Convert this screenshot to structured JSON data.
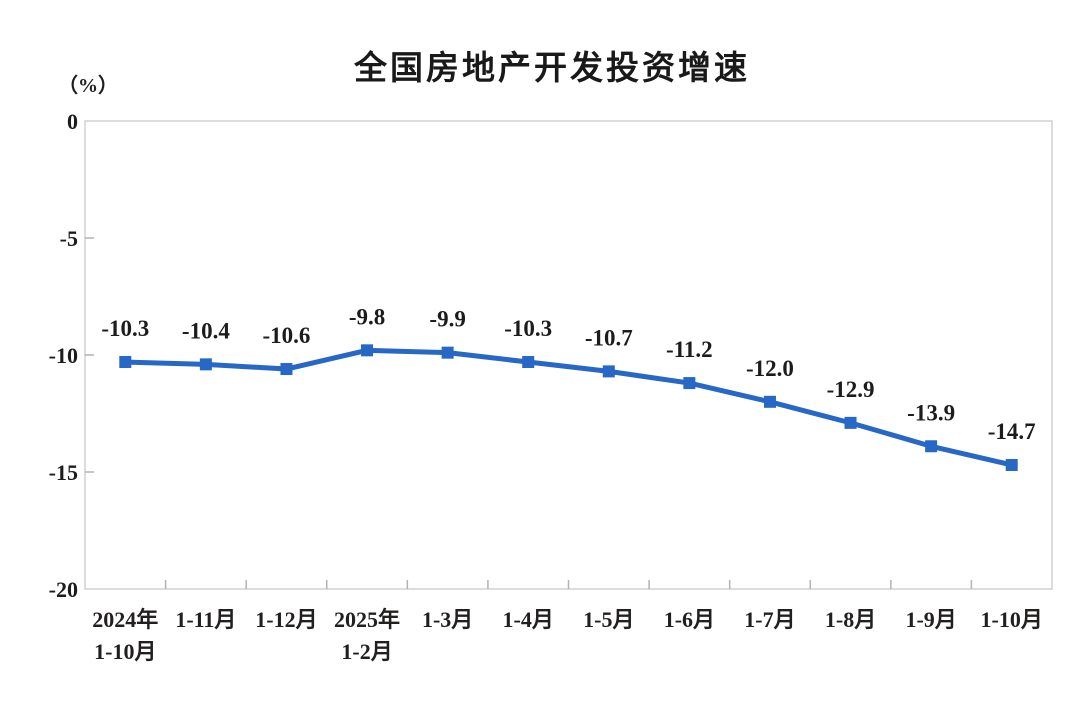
{
  "chart_data": {
    "type": "line",
    "title": "全国房地产开发投资增速",
    "ylabel": "（%）",
    "xlabel": "",
    "categories": [
      [
        "2024年",
        "1-10月"
      ],
      [
        "1-11月"
      ],
      [
        "1-12月"
      ],
      [
        "2025年",
        "1-2月"
      ],
      [
        "1-3月"
      ],
      [
        "1-4月"
      ],
      [
        "1-5月"
      ],
      [
        "1-6月"
      ],
      [
        "1-7月"
      ],
      [
        "1-8月"
      ],
      [
        "1-9月"
      ],
      [
        "1-10月"
      ]
    ],
    "series": [
      {
        "name": "全国房地产开发投资增速",
        "values": [
          -10.3,
          -10.4,
          -10.6,
          -9.8,
          -9.9,
          -10.3,
          -10.7,
          -11.2,
          -12.0,
          -12.9,
          -13.9,
          -14.7
        ]
      }
    ],
    "data_labels": [
      "-10.3",
      "-10.4",
      "-10.6",
      "-9.8",
      "-9.9",
      "-10.3",
      "-10.7",
      "-11.2",
      "-12.0",
      "-12.9",
      "-13.9",
      "-14.7"
    ],
    "ylim": [
      -20,
      0
    ],
    "y_ticks": [
      0,
      -5,
      -10,
      -15,
      -20
    ],
    "y_tick_labels": [
      "0",
      "-5",
      "-10",
      "-15",
      "-20"
    ],
    "grid": false,
    "legend_position": "none",
    "colors": {
      "line": "#2767c6",
      "marker": "#2767c6",
      "frame": "#d0d0d0",
      "tick": "#b3b3b3",
      "text": "#1c1c1c"
    }
  }
}
